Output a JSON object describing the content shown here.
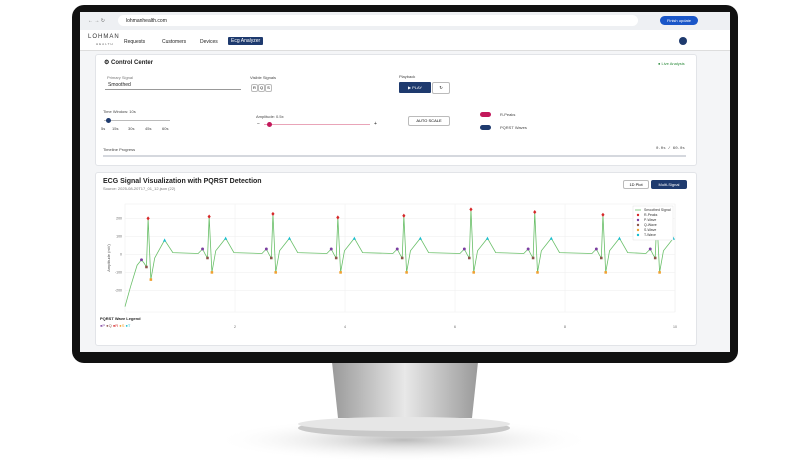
{
  "browser": {
    "url": "lohmanhealth.com",
    "update_button": "Finish update"
  },
  "header": {
    "logo": "LOHMAN",
    "logo_sub": "HEALTH",
    "nav": [
      "Requests",
      "Customers",
      "Devices",
      "Ecg Analyzer"
    ]
  },
  "control_center": {
    "title": "Control Center",
    "status": "Live Analysis",
    "primary_signal_label": "Primary Signal",
    "primary_signal": "Smoothed",
    "visible_signals_label": "Visible Signals",
    "visible_signals": [
      "R",
      "Q",
      "S"
    ],
    "playback_label": "Playback",
    "play": "PLAY",
    "time_window": "Time Window: 10s",
    "time_options": [
      "5s",
      "15s",
      "30s",
      "45s",
      "60s"
    ],
    "amplitude": "Amplitude: 0.5x",
    "auto_scale": "AUTO SCALE",
    "toggles": [
      "R-Peaks",
      "PQRST Waves"
    ],
    "timeline_label": "Timeline Progress",
    "timeline_value": "0.0s / 60.0s"
  },
  "chart_panel": {
    "view_buttons": [
      "1D Plot",
      "Multi-Signal"
    ],
    "wave_legend_title": "PQRST Wave Legend",
    "wave_legend": [
      "P",
      "Q",
      "R",
      "S",
      "T"
    ]
  },
  "chart_data": {
    "type": "line",
    "title": "ECG Signal Visualization with PQRST Detection",
    "subtitle": "Source: 2025-08-20T17_01_12.json (22)",
    "ylabel": "Amplitude (mV)",
    "xlim": [
      0,
      10
    ],
    "ylim": [
      -320,
      280
    ],
    "xticks": [
      2,
      4,
      6,
      8,
      10
    ],
    "yticks": [
      -200,
      -100,
      0,
      100,
      200
    ],
    "grid": true,
    "legend": "top-right",
    "series": [
      {
        "name": "Smoothed Signal",
        "color": "#6abf69",
        "x": [
          0,
          0.1,
          0.22,
          0.3,
          0.35,
          0.39,
          0.42,
          0.47,
          0.54,
          0.72,
          0.87,
          1.33,
          1.41,
          1.46,
          1.5,
          1.53,
          1.58,
          1.65,
          1.83,
          1.98,
          2.49,
          2.57,
          2.62,
          2.66,
          2.69,
          2.74,
          2.81,
          2.99,
          3.14,
          3.67,
          3.75,
          3.8,
          3.84,
          3.87,
          3.92,
          3.99,
          4.17,
          4.32,
          4.87,
          4.95,
          5.0,
          5.04,
          5.07,
          5.12,
          5.19,
          5.37,
          5.52,
          6.09,
          6.17,
          6.22,
          6.26,
          6.29,
          6.34,
          6.41,
          6.59,
          6.74,
          7.25,
          7.33,
          7.38,
          7.42,
          7.45,
          7.5,
          7.57,
          7.75,
          7.9,
          8.49,
          8.57,
          8.62,
          8.66,
          8.69,
          8.74,
          8.81,
          8.99,
          9.14,
          9.47,
          9.55,
          9.6,
          9.64,
          9.67,
          9.72,
          9.79,
          9.97
        ],
        "values": [
          -290,
          -180,
          -60,
          -30,
          -50,
          -70,
          200,
          -140,
          -20,
          80,
          10,
          5,
          30,
          0,
          -20,
          210,
          -100,
          20,
          90,
          10,
          5,
          30,
          0,
          -20,
          225,
          -100,
          20,
          90,
          10,
          5,
          30,
          0,
          -20,
          205,
          -100,
          20,
          90,
          10,
          5,
          30,
          0,
          -20,
          215,
          -100,
          20,
          90,
          10,
          5,
          30,
          0,
          -20,
          250,
          -100,
          20,
          90,
          10,
          5,
          30,
          0,
          -20,
          235,
          -100,
          20,
          90,
          10,
          5,
          30,
          0,
          -20,
          220,
          -100,
          20,
          90,
          10,
          5,
          30,
          0,
          -20,
          200,
          -100,
          20,
          90
        ]
      },
      {
        "name": "R-Peaks",
        "color": "#d62728",
        "marker": "diamond",
        "x": [
          0.42,
          1.53,
          2.69,
          3.87,
          5.07,
          6.29,
          7.45,
          8.69,
          9.67
        ],
        "values": [
          200,
          210,
          225,
          205,
          215,
          250,
          235,
          220,
          200
        ]
      },
      {
        "name": "P-Wave",
        "color": "#7b3fa0",
        "marker": "circle",
        "x": [
          0.3,
          1.41,
          2.57,
          3.75,
          4.95,
          6.17,
          7.33,
          8.57,
          9.55
        ],
        "values": [
          -30,
          30,
          30,
          30,
          30,
          30,
          30,
          30,
          30
        ]
      },
      {
        "name": "Q-Wave",
        "color": "#8c564b",
        "marker": "square",
        "x": [
          0.39,
          1.5,
          2.66,
          3.84,
          5.04,
          6.26,
          7.42,
          8.66,
          9.64
        ],
        "values": [
          -70,
          -20,
          -20,
          -20,
          -20,
          -20,
          -20,
          -20,
          -20
        ]
      },
      {
        "name": "S-Wave",
        "color": "#f0a030",
        "marker": "square",
        "x": [
          0.47,
          1.58,
          2.74,
          3.92,
          5.12,
          6.34,
          7.5,
          8.74,
          9.72
        ],
        "values": [
          -140,
          -100,
          -100,
          -100,
          -100,
          -100,
          -100,
          -100,
          -100
        ]
      },
      {
        "name": "T-Wave",
        "color": "#17becf",
        "marker": "triangle",
        "x": [
          0.72,
          1.83,
          2.99,
          4.17,
          5.37,
          6.59,
          7.75,
          8.99,
          9.97
        ],
        "values": [
          80,
          90,
          90,
          90,
          90,
          90,
          90,
          90,
          90
        ]
      }
    ]
  }
}
